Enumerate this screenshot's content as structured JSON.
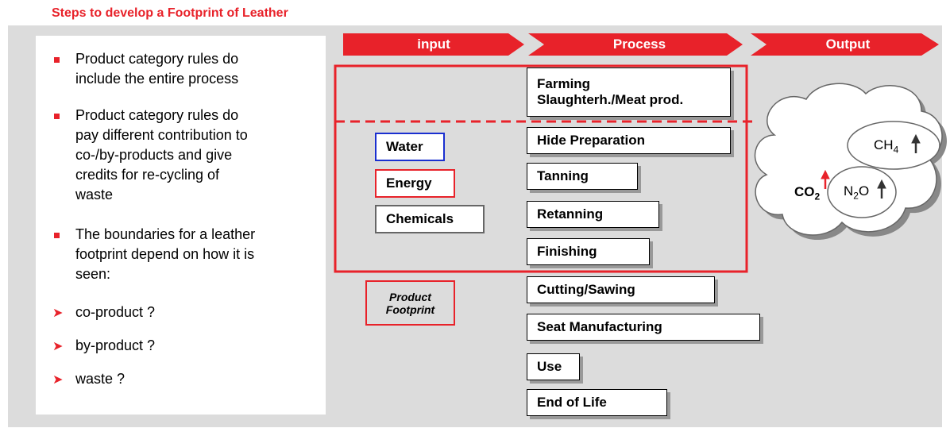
{
  "header": {
    "title": "Steps to develop a Footprint of Leather"
  },
  "bullets": [
    [
      "Product category rules do",
      "include the entire process"
    ],
    [
      "Product category rules do",
      "pay different contribution to",
      "co-/by-products and give",
      "credits for re-cycling of",
      "waste"
    ],
    [
      "The boundaries for a leather",
      "footprint depend on how it is",
      "seen:"
    ]
  ],
  "sub_items": [
    "co-product ?",
    "by-product ?",
    "waste ?"
  ],
  "stages": [
    "input",
    "Process",
    "Output"
  ],
  "farming_step": [
    "Farming",
    "Slaughterh./Meat prod."
  ],
  "process_steps": [
    "Hide Preparation",
    "Tanning",
    "Retanning",
    "Finishing",
    "Cutting/Sawing",
    "Seat Manufacturing",
    "Use",
    "End of Life"
  ],
  "inputs": [
    "Water",
    "Energy",
    "Chemicals"
  ],
  "footprint_label": [
    "Product",
    "Footprint"
  ],
  "emissions": [
    {
      "base": "CO",
      "sub": "2"
    },
    {
      "base": "CH",
      "sub": "4"
    },
    {
      "base": "N",
      "sub": "2",
      "tail": "O"
    }
  ]
}
